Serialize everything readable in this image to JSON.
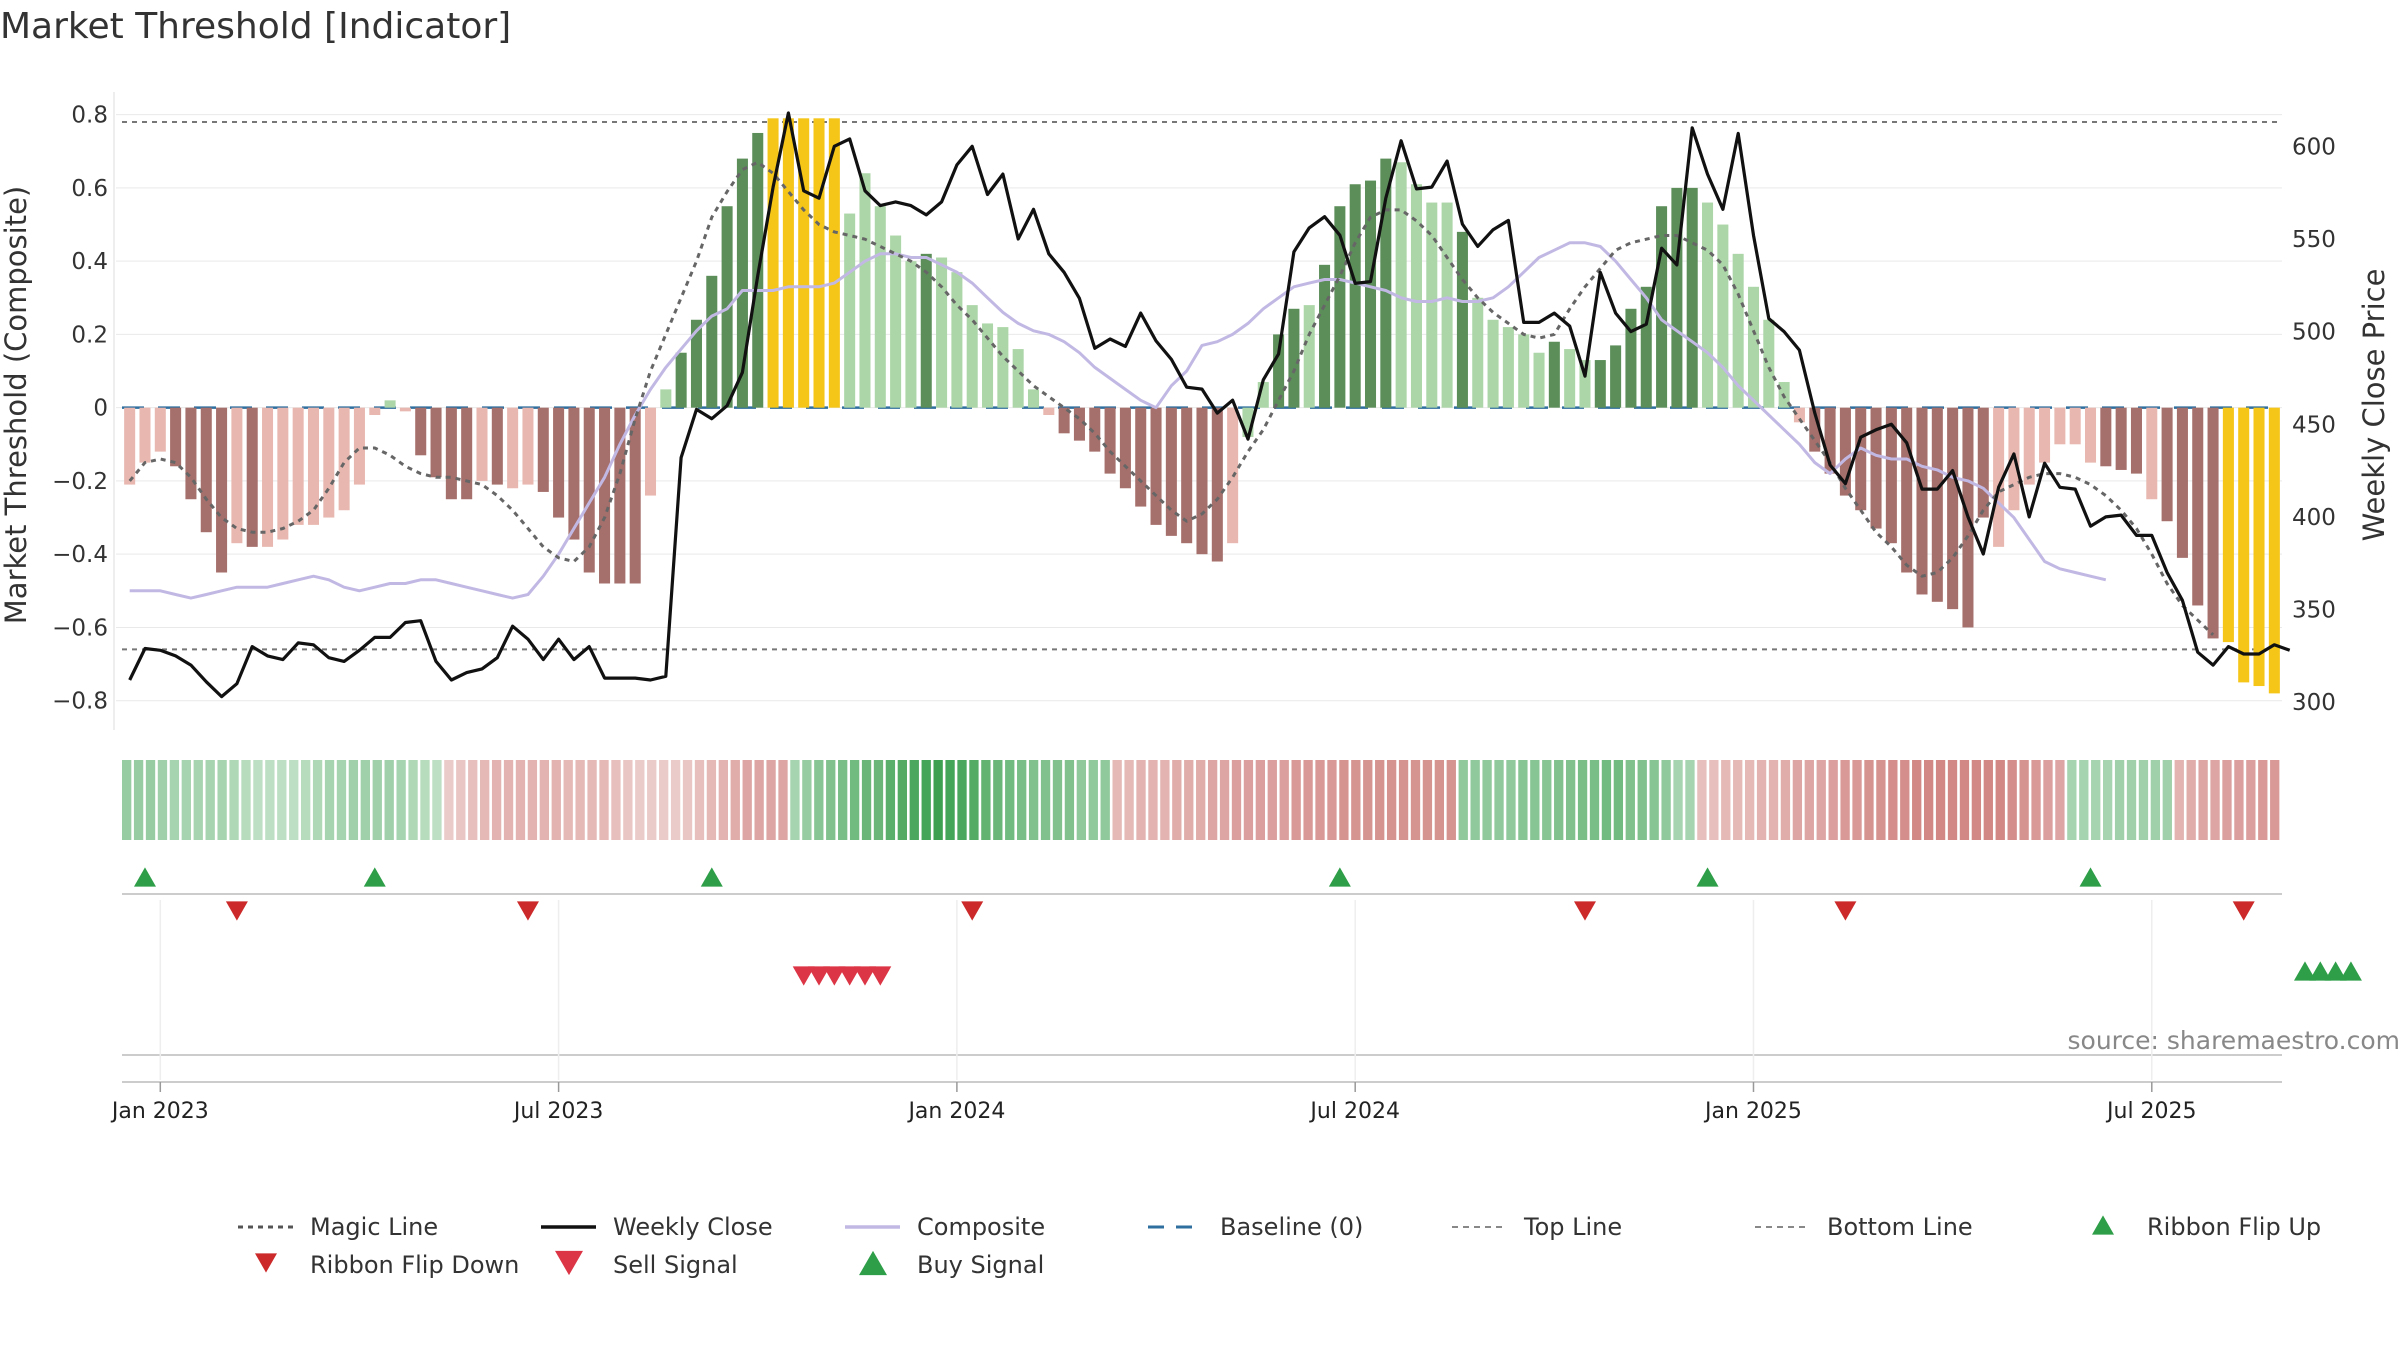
{
  "chart_data": {
    "type": "bar",
    "title": "Market Threshold [Indicator]",
    "ylabel": "Market Threshold (Composite)",
    "y2label": "Weekly Close Price",
    "ylim": [
      -0.88,
      0.84
    ],
    "y2lim": [
      285,
      625
    ],
    "y_ticks": [
      {
        "value": 0.8,
        "label": "0.8"
      },
      {
        "value": 0.6,
        "label": "0.6"
      },
      {
        "value": 0.4,
        "label": "0.4"
      },
      {
        "value": 0.2,
        "label": "0.2"
      },
      {
        "value": 0,
        "label": "0"
      },
      {
        "value": -0.2,
        "label": "−0.2"
      },
      {
        "value": -0.4,
        "label": "−0.4"
      },
      {
        "value": -0.6,
        "label": "−0.6"
      },
      {
        "value": -0.8,
        "label": "−0.8"
      }
    ],
    "y2_ticks": [
      {
        "value": 600,
        "label": "600"
      },
      {
        "value": 550,
        "label": "550"
      },
      {
        "value": 500,
        "label": "500"
      },
      {
        "value": 450,
        "label": "450"
      },
      {
        "value": 400,
        "label": "400"
      },
      {
        "value": 350,
        "label": "350"
      },
      {
        "value": 300,
        "label": "300"
      }
    ],
    "x_ticks": [
      {
        "week": 2,
        "label": "Jan 2023"
      },
      {
        "week": 28,
        "label": "Jul 2023"
      },
      {
        "week": 54,
        "label": "Jan 2024"
      },
      {
        "week": 80,
        "label": "Jul 2024"
      },
      {
        "week": 106,
        "label": "Jan 2025"
      },
      {
        "week": 132,
        "label": "Jul 2025"
      }
    ],
    "top_line": 0.78,
    "bottom_line": -0.66,
    "baseline": 0,
    "grid": true,
    "legend_position": "bottom",
    "composite_bars": [
      -0.21,
      -0.15,
      -0.12,
      -0.16,
      -0.25,
      -0.34,
      -0.45,
      -0.37,
      -0.38,
      -0.38,
      -0.36,
      -0.32,
      -0.32,
      -0.3,
      -0.28,
      -0.21,
      -0.02,
      0.02,
      -0.01,
      -0.13,
      -0.19,
      -0.25,
      -0.25,
      -0.2,
      -0.21,
      -0.22,
      -0.21,
      -0.23,
      -0.3,
      -0.36,
      -0.45,
      -0.48,
      -0.48,
      -0.48,
      -0.24,
      0.05,
      0.15,
      0.24,
      0.36,
      0.55,
      0.68,
      0.75,
      0.79,
      0.79,
      0.79,
      0.79,
      0.79,
      0.53,
      0.64,
      0.55,
      0.47,
      0.4,
      0.42,
      0.41,
      0.37,
      0.28,
      0.23,
      0.22,
      0.16,
      0.05,
      -0.02,
      -0.07,
      -0.09,
      -0.12,
      -0.18,
      -0.22,
      -0.27,
      -0.32,
      -0.35,
      -0.37,
      -0.4,
      -0.42,
      -0.37,
      -0.08,
      0.07,
      0.2,
      0.27,
      0.28,
      0.39,
      0.55,
      0.61,
      0.62,
      0.68,
      0.67,
      0.61,
      0.56,
      0.56,
      0.48,
      0.3,
      0.24,
      0.22,
      0.2,
      0.15,
      0.18,
      0.16,
      0.13,
      0.13,
      0.17,
      0.27,
      0.33,
      0.55,
      0.6,
      0.6,
      0.56,
      0.5,
      0.42,
      0.33,
      0.24,
      0.07,
      -0.04,
      -0.12,
      -0.18,
      -0.24,
      -0.28,
      -0.33,
      -0.37,
      -0.45,
      -0.51,
      -0.53,
      -0.55,
      -0.6,
      -0.3,
      -0.38,
      -0.28,
      -0.21,
      -0.15,
      -0.1,
      -0.1,
      -0.15,
      -0.16,
      -0.17,
      -0.18,
      -0.25,
      -0.31,
      -0.41,
      -0.54,
      -0.63,
      -0.64,
      -0.75,
      -0.76,
      -0.78
    ],
    "bar_colors": [
      "#e8b8b0",
      "#e8b8b0",
      "#e8b8b0",
      "#a56f6b",
      "#a56f6b",
      "#a56f6b",
      "#a56f6b",
      "#e8b8b0",
      "#a56f6b",
      "#e8b8b0",
      "#e8b8b0",
      "#e8b8b0",
      "#e8b8b0",
      "#e8b8b0",
      "#e8b8b0",
      "#e8b8b0",
      "#e8b8b0",
      "#acd6a8",
      "#e8b8b0",
      "#a56f6b",
      "#a56f6b",
      "#a56f6b",
      "#a56f6b",
      "#e8b8b0",
      "#a56f6b",
      "#e8b8b0",
      "#e8b8b0",
      "#a56f6b",
      "#a56f6b",
      "#a56f6b",
      "#a56f6b",
      "#a56f6b",
      "#a56f6b",
      "#a56f6b",
      "#e8b8b0",
      "#acd6a8",
      "#5c8e5a",
      "#5c8e5a",
      "#5c8e5a",
      "#5c8e5a",
      "#5c8e5a",
      "#5c8e5a",
      "#f5c518",
      "#f5c518",
      "#f5c518",
      "#f5c518",
      "#f5c518",
      "#acd6a8",
      "#acd6a8",
      "#acd6a8",
      "#acd6a8",
      "#acd6a8",
      "#5c8e5a",
      "#acd6a8",
      "#acd6a8",
      "#acd6a8",
      "#acd6a8",
      "#acd6a8",
      "#acd6a8",
      "#acd6a8",
      "#e8b8b0",
      "#a56f6b",
      "#a56f6b",
      "#a56f6b",
      "#a56f6b",
      "#a56f6b",
      "#a56f6b",
      "#a56f6b",
      "#a56f6b",
      "#a56f6b",
      "#a56f6b",
      "#a56f6b",
      "#e8b8b0",
      "#acd6a8",
      "#acd6a8",
      "#5c8e5a",
      "#5c8e5a",
      "#acd6a8",
      "#5c8e5a",
      "#5c8e5a",
      "#5c8e5a",
      "#5c8e5a",
      "#5c8e5a",
      "#acd6a8",
      "#acd6a8",
      "#acd6a8",
      "#acd6a8",
      "#5c8e5a",
      "#acd6a8",
      "#acd6a8",
      "#acd6a8",
      "#acd6a8",
      "#acd6a8",
      "#5c8e5a",
      "#acd6a8",
      "#acd6a8",
      "#5c8e5a",
      "#5c8e5a",
      "#5c8e5a",
      "#5c8e5a",
      "#5c8e5a",
      "#5c8e5a",
      "#5c8e5a",
      "#acd6a8",
      "#acd6a8",
      "#acd6a8",
      "#acd6a8",
      "#acd6a8",
      "#acd6a8",
      "#e8b8b0",
      "#a56f6b",
      "#a56f6b",
      "#a56f6b",
      "#a56f6b",
      "#a56f6b",
      "#a56f6b",
      "#a56f6b",
      "#a56f6b",
      "#a56f6b",
      "#a56f6b",
      "#a56f6b",
      "#a56f6b",
      "#e8b8b0",
      "#e8b8b0",
      "#e8b8b0",
      "#e8b8b0",
      "#e8b8b0",
      "#e8b8b0",
      "#e8b8b0",
      "#a56f6b",
      "#a56f6b",
      "#a56f6b",
      "#e8b8b0",
      "#a56f6b",
      "#a56f6b",
      "#a56f6b",
      "#a56f6b",
      "#f5c518",
      "#f5c518",
      "#f5c518",
      "#f5c518"
    ],
    "series": [
      {
        "name": "Weekly Close",
        "axis": "right",
        "color": "#111111",
        "values": [
          312,
          329,
          328,
          325,
          320,
          311,
          303,
          310,
          330,
          325,
          323,
          332,
          331,
          324,
          322,
          328,
          335,
          335,
          343,
          344,
          322,
          312,
          316,
          318,
          324,
          341,
          334,
          323,
          334,
          323,
          330,
          313,
          313,
          313,
          312,
          314,
          432,
          458,
          453,
          460,
          478,
          530,
          578,
          618,
          576,
          572,
          600,
          604,
          576,
          568,
          570,
          568,
          563,
          570,
          590,
          600,
          574,
          585,
          550,
          566,
          542,
          532,
          518,
          491,
          496,
          492,
          510,
          495,
          485,
          470,
          469,
          456,
          463,
          442,
          474,
          488,
          543,
          556,
          562,
          552,
          526,
          527,
          572,
          603,
          577,
          578,
          592,
          558,
          546,
          555,
          560,
          505,
          505,
          510,
          503,
          476,
          532,
          510,
          500,
          504,
          545,
          536,
          610,
          585,
          566,
          607,
          552,
          507,
          500,
          490,
          456,
          428,
          418,
          443,
          447,
          450,
          440,
          415,
          415,
          425,
          400,
          380,
          416,
          434,
          400,
          429,
          416,
          415,
          395,
          400,
          401,
          390,
          390,
          370,
          355,
          327,
          320,
          330,
          326,
          326,
          331,
          328
        ],
        "style": "solid"
      },
      {
        "name": "Composite",
        "axis": "left",
        "color": "#c2b8e4",
        "values": [
          -0.5,
          -0.5,
          -0.5,
          -0.51,
          -0.52,
          -0.51,
          -0.5,
          -0.49,
          -0.49,
          -0.49,
          -0.48,
          -0.47,
          -0.46,
          -0.47,
          -0.49,
          -0.5,
          -0.49,
          -0.48,
          -0.48,
          -0.47,
          -0.47,
          -0.48,
          -0.49,
          -0.5,
          -0.51,
          -0.52,
          -0.51,
          -0.46,
          -0.4,
          -0.33,
          -0.26,
          -0.19,
          -0.1,
          -0.02,
          0.05,
          0.11,
          0.16,
          0.21,
          0.25,
          0.27,
          0.32,
          0.32,
          0.32,
          0.33,
          0.33,
          0.33,
          0.34,
          0.37,
          0.4,
          0.42,
          0.42,
          0.41,
          0.41,
          0.39,
          0.37,
          0.34,
          0.3,
          0.26,
          0.23,
          0.21,
          0.2,
          0.18,
          0.15,
          0.11,
          0.08,
          0.05,
          0.02,
          0.0,
          0.06,
          0.1,
          0.17,
          0.18,
          0.2,
          0.23,
          0.27,
          0.3,
          0.33,
          0.34,
          0.35,
          0.35,
          0.34,
          0.33,
          0.32,
          0.3,
          0.29,
          0.29,
          0.3,
          0.29,
          0.29,
          0.3,
          0.33,
          0.37,
          0.41,
          0.43,
          0.45,
          0.45,
          0.44,
          0.4,
          0.35,
          0.3,
          0.24,
          0.21,
          0.18,
          0.15,
          0.11,
          0.06,
          0.02,
          -0.02,
          -0.06,
          -0.1,
          -0.15,
          -0.18,
          -0.14,
          -0.11,
          -0.13,
          -0.14,
          -0.14,
          -0.16,
          -0.17,
          -0.19,
          -0.2,
          -0.22,
          -0.26,
          -0.3,
          -0.36,
          -0.42,
          -0.44,
          -0.45,
          -0.46,
          -0.47
        ],
        "style": "solid"
      },
      {
        "name": "Magic Line",
        "axis": "left",
        "color": "#666666",
        "values": [
          -0.2,
          -0.15,
          -0.14,
          -0.15,
          -0.19,
          -0.25,
          -0.3,
          -0.33,
          -0.34,
          -0.34,
          -0.33,
          -0.31,
          -0.28,
          -0.22,
          -0.15,
          -0.11,
          -0.11,
          -0.13,
          -0.16,
          -0.18,
          -0.19,
          -0.19,
          -0.2,
          -0.21,
          -0.24,
          -0.28,
          -0.33,
          -0.38,
          -0.41,
          -0.42,
          -0.38,
          -0.3,
          -0.18,
          -0.03,
          0.1,
          0.2,
          0.3,
          0.4,
          0.52,
          0.59,
          0.65,
          0.67,
          0.64,
          0.59,
          0.54,
          0.5,
          0.48,
          0.47,
          0.46,
          0.44,
          0.42,
          0.4,
          0.37,
          0.33,
          0.28,
          0.24,
          0.19,
          0.14,
          0.1,
          0.06,
          0.03,
          0.0,
          -0.03,
          -0.07,
          -0.12,
          -0.16,
          -0.2,
          -0.24,
          -0.28,
          -0.31,
          -0.29,
          -0.25,
          -0.19,
          -0.12,
          -0.06,
          0.02,
          0.1,
          0.2,
          0.28,
          0.36,
          0.45,
          0.52,
          0.54,
          0.54,
          0.51,
          0.47,
          0.41,
          0.35,
          0.3,
          0.26,
          0.23,
          0.2,
          0.19,
          0.2,
          0.27,
          0.33,
          0.38,
          0.43,
          0.45,
          0.46,
          0.47,
          0.47,
          0.45,
          0.43,
          0.39,
          0.31,
          0.21,
          0.11,
          0.03,
          -0.03,
          -0.09,
          -0.15,
          -0.22,
          -0.28,
          -0.34,
          -0.38,
          -0.43,
          -0.46,
          -0.45,
          -0.41,
          -0.35,
          -0.28,
          -0.23,
          -0.21,
          -0.19,
          -0.18,
          -0.18,
          -0.19,
          -0.21,
          -0.24,
          -0.28,
          -0.33,
          -0.4,
          -0.48,
          -0.54,
          -0.58,
          -0.62
        ],
        "style": "dotted"
      }
    ],
    "ribbon": {
      "values": [
        0.4,
        0.4,
        0.4,
        0.35,
        0.3,
        0.3,
        0.3,
        0.3,
        0.3,
        0.25,
        0.2,
        0.15,
        0.15,
        0.15,
        0.15,
        0.2,
        0.25,
        0.3,
        0.3,
        0.35,
        0.35,
        0.35,
        0.35,
        0.3,
        0.25,
        0.2,
        0.15,
        -0.15,
        -0.2,
        -0.25,
        -0.3,
        -0.35,
        -0.35,
        -0.35,
        -0.35,
        -0.35,
        -0.35,
        -0.3,
        -0.3,
        -0.3,
        -0.3,
        -0.25,
        -0.2,
        -0.15,
        -0.15,
        -0.15,
        -0.15,
        -0.2,
        -0.25,
        -0.3,
        -0.35,
        -0.4,
        -0.45,
        -0.45,
        -0.45,
        -0.45,
        0.3,
        0.4,
        0.5,
        0.55,
        0.6,
        0.65,
        0.7,
        0.7,
        0.8,
        0.85,
        0.9,
        0.95,
        1,
        0.95,
        0.9,
        0.85,
        0.75,
        0.7,
        0.65,
        0.6,
        0.55,
        0.55,
        0.55,
        0.55,
        0.45,
        0.45,
        0.45,
        -0.3,
        -0.3,
        -0.35,
        -0.35,
        -0.35,
        -0.4,
        -0.4,
        -0.4,
        -0.45,
        -0.45,
        -0.5,
        -0.5,
        -0.5,
        -0.5,
        -0.5,
        -0.55,
        -0.55,
        -0.55,
        -0.55,
        -0.6,
        -0.6,
        -0.6,
        -0.6,
        -0.6,
        -0.6,
        -0.6,
        -0.6,
        -0.6,
        -0.6,
        0.45,
        0.45,
        0.45,
        0.45,
        0.45,
        0.5,
        0.5,
        0.5,
        0.55,
        0.55,
        0.6,
        0.6,
        0.65,
        0.65,
        0.55,
        0.55,
        0.5,
        0.45,
        0.3,
        0.3,
        -0.25,
        -0.25,
        -0.3,
        -0.3,
        -0.3,
        -0.35,
        -0.35,
        -0.4,
        -0.45,
        -0.45,
        -0.45,
        -0.5,
        -0.55,
        -0.55,
        -0.6,
        -0.6,
        -0.65,
        -0.65,
        -0.7,
        -0.7,
        -0.7,
        -0.7,
        -0.7,
        -0.7,
        -0.7,
        -0.7,
        -0.65,
        -0.6,
        -0.55,
        -0.5,
        -0.45,
        0.3,
        0.3,
        0.3,
        0.3,
        0.35,
        0.35,
        0.35,
        0.35,
        0.35,
        -0.35,
        -0.4,
        -0.45,
        -0.45,
        -0.5,
        -0.5,
        -0.5,
        -0.55,
        -0.55
      ]
    },
    "ribbon_flip_up_weeks": [
      1,
      16,
      38,
      79,
      103,
      128
    ],
    "ribbon_flip_down_weeks": [
      7,
      26,
      55,
      95,
      112,
      138
    ],
    "sell_signal_weeks": [
      44,
      45,
      46,
      47,
      48,
      49
    ],
    "buy_signal_weeks": [
      142,
      143,
      144,
      145
    ],
    "source": "source: sharemaestro.com",
    "legend": [
      {
        "label": "Magic Line",
        "kind": "dotted",
        "color": "#555555"
      },
      {
        "label": "Weekly Close",
        "kind": "solid",
        "color": "#111111"
      },
      {
        "label": "Composite",
        "kind": "solid",
        "color": "#c2b8e4"
      },
      {
        "label": "Baseline (0)",
        "kind": "dashed",
        "color": "#2f6f9f"
      },
      {
        "label": "Top Line",
        "kind": "dashed-light",
        "color": "#888888"
      },
      {
        "label": "Bottom Line",
        "kind": "dashed-light",
        "color": "#888888"
      },
      {
        "label": "Ribbon Flip Up",
        "kind": "tri-up",
        "color": "#2e9e48"
      },
      {
        "label": "Ribbon Flip Down",
        "kind": "tri-down",
        "color": "#cc2a2a"
      },
      {
        "label": "Sell Signal",
        "kind": "tri-down-big",
        "color": "#dc3545"
      },
      {
        "label": "Buy Signal",
        "kind": "tri-up-big",
        "color": "#2e9e48"
      }
    ]
  }
}
